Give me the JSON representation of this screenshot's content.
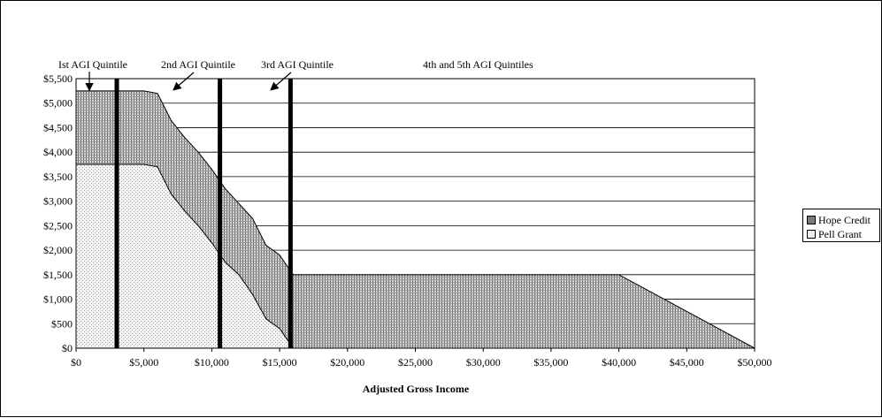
{
  "chart_data": {
    "type": "area",
    "xlabel": "Adjusted Gross Income",
    "ylabel": "",
    "xlim": [
      0,
      50000
    ],
    "ylim": [
      0,
      5500
    ],
    "x_ticks": [
      "$0",
      "$5,000",
      "$10,000",
      "$15,000",
      "$20,000",
      "$25,000",
      "$30,000",
      "$35,000",
      "$40,000",
      "$45,000",
      "$50,000"
    ],
    "y_ticks": [
      "$5,500",
      "$5,000",
      "$4,500",
      "$4,000",
      "$3,500",
      "$3,000",
      "$2,500",
      "$2,000",
      "$1,500",
      "$1,000",
      "$500",
      "$0"
    ],
    "grid": true,
    "legend_position": "right",
    "stacked": true,
    "series": [
      {
        "name": "Pell Grant",
        "pattern": "dots-light",
        "x": [
          0,
          5000,
          6000,
          7000,
          8000,
          9000,
          10000,
          11000,
          12000,
          13000,
          14000,
          15000,
          15500,
          16000
        ],
        "values": [
          3750,
          3750,
          3700,
          3150,
          2800,
          2500,
          2150,
          1750,
          1500,
          1100,
          600,
          400,
          200,
          0
        ]
      },
      {
        "name": "Hope Credit",
        "pattern": "dense-gray",
        "x": [
          0,
          5000,
          6000,
          7000,
          8000,
          9000,
          10000,
          11000,
          12000,
          13000,
          14000,
          15000,
          15500,
          16000,
          16000,
          40000,
          42000,
          44000,
          46000,
          48000,
          50000
        ],
        "total": [
          5250,
          5250,
          5200,
          4650,
          4300,
          4000,
          3650,
          3250,
          2950,
          2650,
          2100,
          1900,
          1700,
          1500,
          1500,
          1500,
          1200,
          900,
          600,
          300,
          0
        ]
      }
    ],
    "vertical_lines": [
      3000,
      10600,
      15800
    ],
    "annotations": [
      {
        "text": "Ist AGI Quintile",
        "arrow_to_x": 1000
      },
      {
        "text": "2nd AGI Quintile",
        "arrow_to_x": 7500
      },
      {
        "text": "3rd AGI Quintile",
        "arrow_to_x": 15000
      },
      {
        "text": "4th and 5th  AGI  Quintiles"
      }
    ],
    "legend": [
      "Hope Credit",
      "Pell Grant"
    ]
  }
}
